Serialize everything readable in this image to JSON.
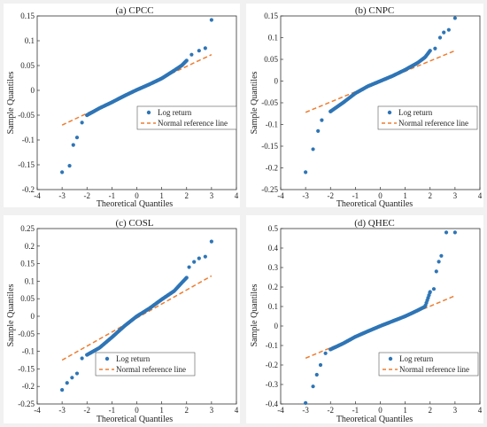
{
  "figure": {
    "background": "#f1f1f1",
    "marker_color": "#2e75b6",
    "ref_line_color": "#ed7d31"
  },
  "chart_data": [
    {
      "type": "scatter",
      "title": "(a) CPCC",
      "xlabel": "Theoretical Quantiles",
      "ylabel": "Sample Quantiles",
      "xlim": [
        -4,
        4
      ],
      "ylim": [
        -0.2,
        0.15
      ],
      "xticks": [
        -4,
        -3,
        -2,
        -1,
        0,
        1,
        2,
        3,
        4
      ],
      "yticks": [
        -0.2,
        -0.15,
        -0.1,
        -0.05,
        0,
        0.05,
        0.1,
        0.15
      ],
      "ytick_labels": [
        "-0.2",
        "-0.15",
        "-0.1",
        "-0.05",
        "0",
        "0.05",
        "0.1",
        "0.15"
      ],
      "legend_position": "center-right",
      "series": [
        {
          "name": "Log return",
          "kind": "points",
          "curve": [
            [
              -3.0,
              -0.165
            ],
            [
              -2.7,
              -0.152
            ],
            [
              -2.55,
              -0.11
            ],
            [
              -2.4,
              -0.095
            ],
            [
              -2.2,
              -0.065
            ],
            [
              -2.0,
              -0.05
            ],
            [
              -1.5,
              -0.036
            ],
            [
              -1.0,
              -0.024
            ],
            [
              -0.5,
              -0.011
            ],
            [
              0,
              0.001
            ],
            [
              0.5,
              0.012
            ],
            [
              1.0,
              0.024
            ],
            [
              1.5,
              0.04
            ],
            [
              1.8,
              0.05
            ],
            [
              2.0,
              0.06
            ],
            [
              2.2,
              0.072
            ],
            [
              2.5,
              0.08
            ],
            [
              2.75,
              0.085
            ],
            [
              3.0,
              0.142
            ]
          ]
        },
        {
          "name": "Normal reference line",
          "kind": "dashed-line",
          "start": [
            -3.0,
            -0.07
          ],
          "end": [
            3.0,
            0.072
          ]
        }
      ]
    },
    {
      "type": "scatter",
      "title": "(b) CNPC",
      "xlabel": "Theoretical Quantiles",
      "ylabel": "Sample Quantiles",
      "xlim": [
        -4,
        4
      ],
      "ylim": [
        -0.25,
        0.15
      ],
      "xticks": [
        -4,
        -3,
        -2,
        -1,
        0,
        1,
        2,
        3,
        4
      ],
      "yticks": [
        -0.25,
        -0.2,
        -0.15,
        -0.1,
        -0.05,
        0,
        0.05,
        0.1,
        0.15
      ],
      "ytick_labels": [
        "-0.25",
        "-0.2",
        "-0.15",
        "-0.1",
        "-0.05",
        "0",
        "0.05",
        "0.1",
        "0.15"
      ],
      "legend_position": "center-right",
      "series": [
        {
          "name": "Log return",
          "kind": "points",
          "curve": [
            [
              -3.0,
              -0.21
            ],
            [
              -2.7,
              -0.157
            ],
            [
              -2.5,
              -0.115
            ],
            [
              -2.35,
              -0.09
            ],
            [
              -2.0,
              -0.07
            ],
            [
              -1.5,
              -0.05
            ],
            [
              -1.0,
              -0.028
            ],
            [
              -0.5,
              -0.012
            ],
            [
              0,
              0.0
            ],
            [
              0.5,
              0.012
            ],
            [
              1.0,
              0.026
            ],
            [
              1.5,
              0.042
            ],
            [
              1.8,
              0.055
            ],
            [
              2.0,
              0.07
            ],
            [
              2.2,
              0.075
            ],
            [
              2.4,
              0.1
            ],
            [
              2.55,
              0.112
            ],
            [
              2.75,
              0.118
            ],
            [
              3.0,
              0.145
            ]
          ]
        },
        {
          "name": "Normal reference line",
          "kind": "dashed-line",
          "start": [
            -3.0,
            -0.072
          ],
          "end": [
            3.0,
            0.07
          ]
        }
      ]
    },
    {
      "type": "scatter",
      "title": "(c) COSL",
      "xlabel": "Theoretical Quantiles",
      "ylabel": "Sample Quantiles",
      "xlim": [
        -4,
        4
      ],
      "ylim": [
        -0.25,
        0.25
      ],
      "xticks": [
        -4,
        -3,
        -2,
        -1,
        0,
        1,
        2,
        3,
        4
      ],
      "yticks": [
        -0.25,
        -0.2,
        -0.15,
        -0.1,
        -0.05,
        0,
        0.05,
        0.1,
        0.15,
        0.2,
        0.25
      ],
      "ytick_labels": [
        "-0.25",
        "-0.2",
        "-0.15",
        "-0.1",
        "-0.05",
        "0",
        "0.05",
        "0.1",
        "0.15",
        "0.2",
        "0.25"
      ],
      "legend_position": "bottom-left",
      "series": [
        {
          "name": "Log return",
          "kind": "points",
          "curve": [
            [
              -3.0,
              -0.21
            ],
            [
              -2.8,
              -0.19
            ],
            [
              -2.6,
              -0.175
            ],
            [
              -2.4,
              -0.163
            ],
            [
              -2.2,
              -0.12
            ],
            [
              -2.0,
              -0.11
            ],
            [
              -1.5,
              -0.09
            ],
            [
              -1.0,
              -0.06
            ],
            [
              -0.5,
              -0.028
            ],
            [
              0,
              0.0
            ],
            [
              0.5,
              0.022
            ],
            [
              1.0,
              0.048
            ],
            [
              1.5,
              0.072
            ],
            [
              1.8,
              0.095
            ],
            [
              2.0,
              0.11
            ],
            [
              2.1,
              0.14
            ],
            [
              2.3,
              0.155
            ],
            [
              2.5,
              0.165
            ],
            [
              2.75,
              0.17
            ],
            [
              3.0,
              0.213
            ]
          ]
        },
        {
          "name": "Normal reference line",
          "kind": "dashed-line",
          "start": [
            -3.0,
            -0.125
          ],
          "end": [
            3.0,
            0.115
          ]
        }
      ]
    },
    {
      "type": "scatter",
      "title": "(d) QHEC",
      "xlabel": "Theoretical Quantiles",
      "ylabel": "Sample Quantiles",
      "xlim": [
        -4,
        4
      ],
      "ylim": [
        -0.4,
        0.5
      ],
      "xticks": [
        -4,
        -3,
        -2,
        -1,
        0,
        1,
        2,
        3,
        4
      ],
      "yticks": [
        -0.4,
        -0.3,
        -0.2,
        -0.1,
        0,
        0.1,
        0.2,
        0.3,
        0.4,
        0.5
      ],
      "ytick_labels": [
        "-0.4",
        "-0.3",
        "-0.2",
        "-0.1",
        "0",
        "0.1",
        "0.2",
        "0.3",
        "0.4",
        "0.5"
      ],
      "legend_position": "bottom-right",
      "series": [
        {
          "name": "Log return",
          "kind": "points",
          "curve": [
            [
              -3.0,
              -0.395
            ],
            [
              -2.7,
              -0.31
            ],
            [
              -2.55,
              -0.25
            ],
            [
              -2.4,
              -0.2
            ],
            [
              -2.2,
              -0.14
            ],
            [
              -2.0,
              -0.12
            ],
            [
              -1.5,
              -0.09
            ],
            [
              -1.0,
              -0.055
            ],
            [
              -0.5,
              -0.027
            ],
            [
              0,
              0.0
            ],
            [
              0.5,
              0.025
            ],
            [
              1.0,
              0.05
            ],
            [
              1.5,
              0.08
            ],
            [
              1.8,
              0.1
            ],
            [
              2.0,
              0.175
            ],
            [
              2.15,
              0.19
            ],
            [
              2.25,
              0.28
            ],
            [
              2.35,
              0.33
            ],
            [
              2.45,
              0.36
            ],
            [
              2.65,
              0.48
            ],
            [
              3.0,
              0.48
            ]
          ]
        },
        {
          "name": "Normal reference line",
          "kind": "dashed-line",
          "start": [
            -3.0,
            -0.165
          ],
          "end": [
            3.0,
            0.155
          ]
        }
      ]
    }
  ]
}
